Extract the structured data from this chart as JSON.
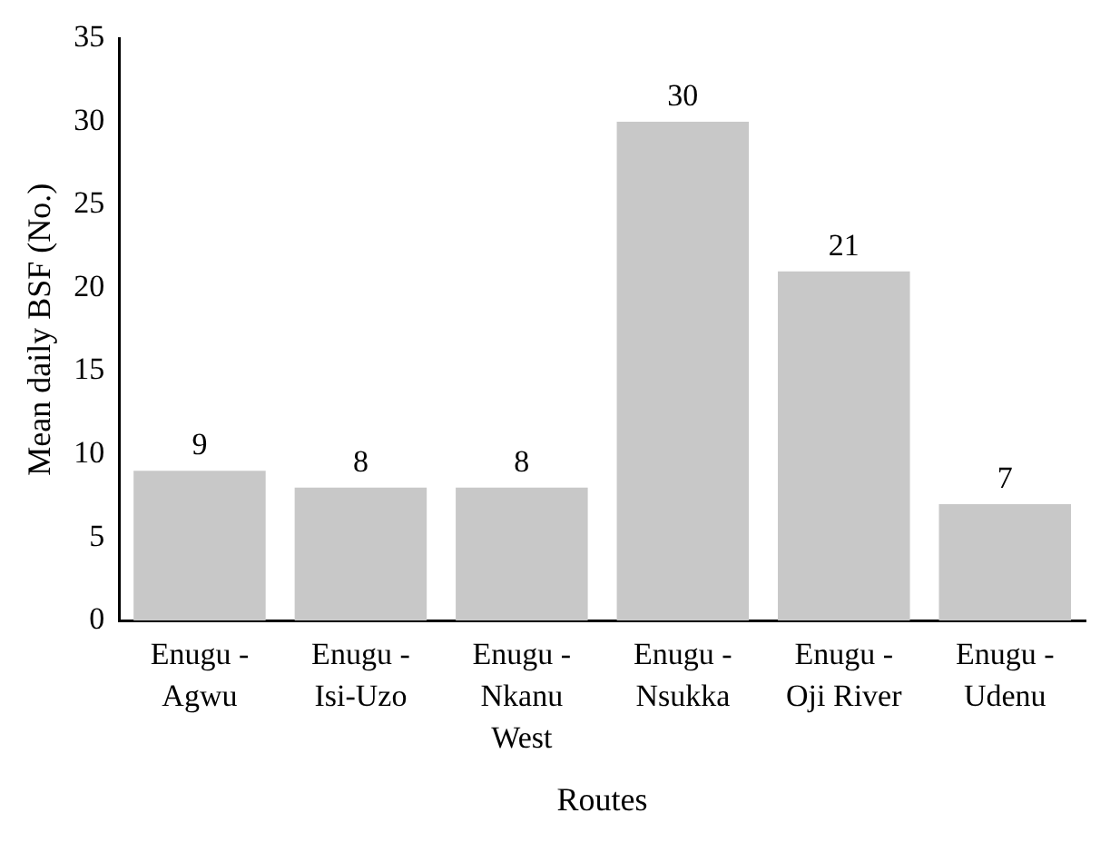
{
  "chart_data": {
    "type": "bar",
    "xlabel": "Routes",
    "ylabel": "Mean daily BSF (No.)",
    "categories": [
      "Enugu - Agwu",
      "Enugu - Isi-Uzo",
      "Enugu - Nkanu West",
      "Enugu - Nsukka",
      "Enugu - Oji River",
      "Enugu - Udenu"
    ],
    "values": [
      9,
      8,
      8,
      30,
      21,
      7
    ],
    "color": "#c8c8c8",
    "ylim": [
      0,
      35
    ],
    "yticks": [
      0,
      5,
      10,
      15,
      20,
      25,
      30,
      35
    ],
    "grid": false,
    "legend": false,
    "data_labels": true
  }
}
